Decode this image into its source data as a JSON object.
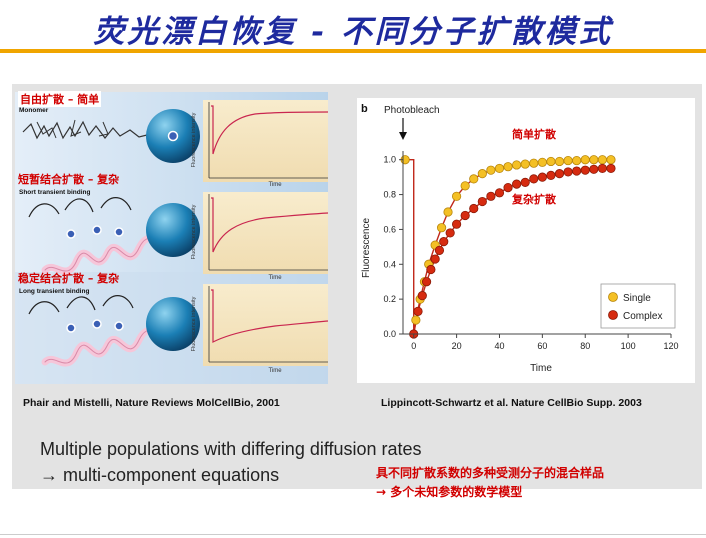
{
  "slide": {
    "title": "荧光漂白恢复 - 不同分子扩散模式",
    "colors": {
      "title": "#1e2a9e",
      "rule": "#f0a500",
      "highlight": "#d10000",
      "single": "#f4c025",
      "complex": "#d62b10",
      "cell": "#1b7fb5"
    }
  },
  "panel_a": {
    "label_free_cn": "自由扩散 – 简单",
    "label_free_en": "Monomer",
    "label_short_cn": "短暂结合扩散 – 复杂",
    "label_short_en": "Short transient binding",
    "label_long_cn": "稳定结合扩散 – 复杂",
    "label_long_en": "Long transient binding",
    "y_axis_label": "Fluorescence intensity",
    "x_axis_label": "Time"
  },
  "panel_b": {
    "panel_letter": "b",
    "photobleach_label": "Photobleach",
    "label_simple_cn": "简单扩散",
    "label_complex_cn": "复杂扩散",
    "legend_single": "Single",
    "legend_complex": "Complex"
  },
  "chart_data": {
    "type": "scatter",
    "xlabel": "Time",
    "ylabel": "Fluorescence",
    "xlim": [
      -5,
      120
    ],
    "ylim": [
      0,
      1.05
    ],
    "x_ticks": [
      "0",
      "20",
      "40",
      "60",
      "80",
      "100",
      "120"
    ],
    "y_ticks": [
      "0.0",
      "0.2",
      "0.4",
      "0.6",
      "0.8",
      "1.0"
    ],
    "legend_position": "bottom-right",
    "annotations": [
      "Photobleach"
    ],
    "series": [
      {
        "name": "Single",
        "color": "#f4c025",
        "x": [
          -4,
          1,
          3,
          5,
          7,
          10,
          13,
          16,
          20,
          24,
          28,
          32,
          36,
          40,
          44,
          48,
          52,
          56,
          60,
          64,
          68,
          72,
          76,
          80,
          84,
          88,
          92
        ],
        "y": [
          1.0,
          0.08,
          0.2,
          0.3,
          0.4,
          0.51,
          0.61,
          0.7,
          0.79,
          0.85,
          0.89,
          0.92,
          0.94,
          0.95,
          0.96,
          0.97,
          0.975,
          0.98,
          0.985,
          0.99,
          0.99,
          0.995,
          0.995,
          1.0,
          1.0,
          1.0,
          1.0
        ]
      },
      {
        "name": "Complex",
        "color": "#d62b10",
        "x": [
          0,
          2,
          4,
          6,
          8,
          10,
          12,
          14,
          17,
          20,
          24,
          28,
          32,
          36,
          40,
          44,
          48,
          52,
          56,
          60,
          64,
          68,
          72,
          76,
          80,
          84,
          88,
          92
        ],
        "y": [
          0.0,
          0.13,
          0.22,
          0.3,
          0.37,
          0.43,
          0.48,
          0.53,
          0.58,
          0.63,
          0.68,
          0.72,
          0.76,
          0.79,
          0.81,
          0.84,
          0.86,
          0.87,
          0.89,
          0.9,
          0.91,
          0.92,
          0.93,
          0.935,
          0.94,
          0.945,
          0.95,
          0.95
        ]
      }
    ]
  },
  "citations": {
    "left": "Phair and Mistelli, Nature Reviews MolCellBio, 2001",
    "right": "Lippincott-Schwartz et al. Nature CellBio Supp. 2003"
  },
  "summary": {
    "en_line1": "Multiple populations with differing diffusion rates",
    "en_line2": "→ multi-component equations",
    "cn_line1": "具不同扩散系数的多种受测分子的混合样品",
    "cn_line2": "→ 多个未知参数的数学模型"
  }
}
